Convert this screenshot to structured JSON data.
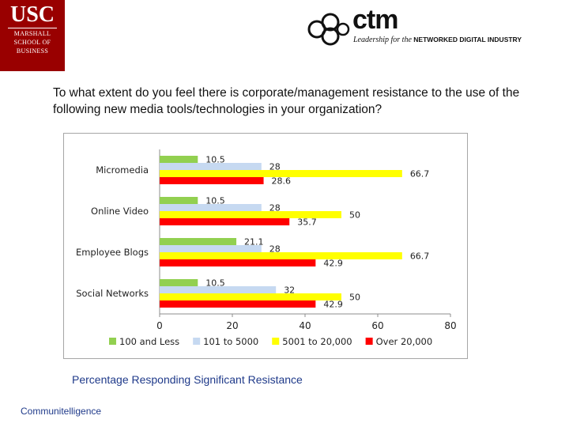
{
  "logo": {
    "usc": "USC",
    "line1": "MARSHALL",
    "line2": "SCHOOL OF",
    "line3": "BUSINESS"
  },
  "ctm": {
    "word": "ctm",
    "tag_italic": "Leadership for the",
    "tag_caps": "NETWORKED DIGITAL INDUSTRY"
  },
  "question": "To what extent do you feel there is corporate/management resistance to the use of the following new media tools/technologies in your organization?",
  "caption": "Percentage Responding Significant Resistance",
  "footer": "Communitelligence",
  "colors": {
    "usc_red": "#990000",
    "s1": "#92d050",
    "s2": "#c6d9f1",
    "s3": "#ffff00",
    "s4": "#ff0000"
  },
  "chart_data": {
    "type": "bar",
    "orientation": "horizontal",
    "categories": [
      "Micromedia",
      "Online Video",
      "Employee Blogs",
      "Social Networks"
    ],
    "series": [
      {
        "name": "100 and Less",
        "values": [
          10.5,
          10.5,
          21.1,
          10.5
        ],
        "labels": [
          "10.5",
          "10.5",
          "21.1",
          "10.5"
        ],
        "color": "#92d050"
      },
      {
        "name": "101 to 5000",
        "values": [
          28,
          28,
          28,
          32
        ],
        "labels": [
          "28",
          "28",
          "28",
          "32"
        ],
        "color": "#c6d9f1"
      },
      {
        "name": "5001 to 20,000",
        "values": [
          66.7,
          50,
          66.7,
          50
        ],
        "labels": [
          "66.7",
          "50",
          "66.7",
          "50"
        ],
        "color": "#ffff00"
      },
      {
        "name": "Over 20,000",
        "values": [
          28.6,
          35.7,
          42.9,
          42.9
        ],
        "labels": [
          "28.6",
          "35.7",
          "42.9",
          "42.9"
        ],
        "color": "#ff0000"
      }
    ],
    "xlim": [
      0,
      80
    ],
    "ticks": [
      0,
      20,
      40,
      60,
      80
    ],
    "tick_labels": [
      "0",
      "20",
      "40",
      "60",
      "80"
    ],
    "grid": false,
    "legend": "bottom"
  }
}
